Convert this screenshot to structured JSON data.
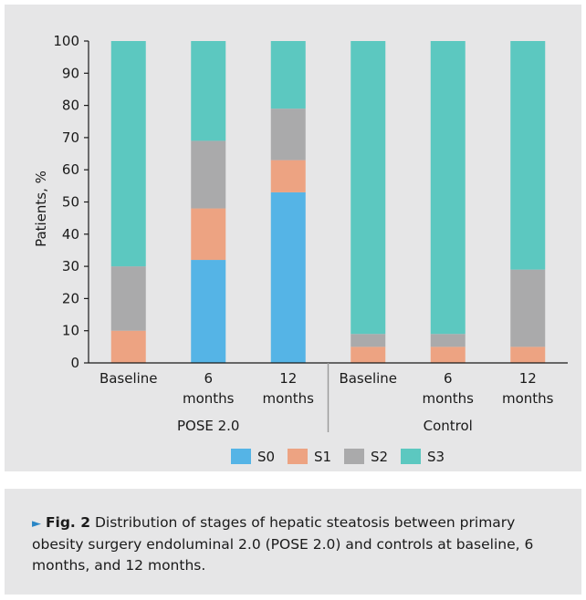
{
  "chart_data": {
    "type": "bar",
    "stacked": true,
    "categories": [
      "Baseline",
      "6 months",
      "12 months",
      "Baseline",
      "6 months",
      "12 months"
    ],
    "category_lines": [
      [
        "Baseline"
      ],
      [
        "6",
        "months"
      ],
      [
        "12",
        "months"
      ],
      [
        "Baseline"
      ],
      [
        "6",
        "months"
      ],
      [
        "12",
        "months"
      ]
    ],
    "groups": [
      {
        "label": "POSE 2.0",
        "categories": [
          0,
          1,
          2
        ]
      },
      {
        "label": "Control",
        "categories": [
          3,
          4,
          5
        ]
      }
    ],
    "series": [
      {
        "name": "S0",
        "color": "#55b4e6",
        "values": [
          0,
          32,
          53,
          0,
          0,
          0
        ]
      },
      {
        "name": "S1",
        "color": "#eda382",
        "values": [
          10,
          16,
          10,
          5,
          5,
          5
        ]
      },
      {
        "name": "S2",
        "color": "#aaaaab",
        "values": [
          20,
          21,
          16,
          4,
          4,
          24
        ]
      },
      {
        "name": "S3",
        "color": "#5cc8c0",
        "values": [
          70,
          31,
          21,
          91,
          91,
          71
        ]
      }
    ],
    "ylabel": "Patients, %",
    "ylim": [
      0,
      100
    ],
    "yticks": [
      0,
      10,
      20,
      30,
      40,
      50,
      60,
      70,
      80,
      90,
      100
    ],
    "grid": false,
    "legend_position": "bottom"
  },
  "caption": {
    "arrow": "►",
    "label": "Fig. 2",
    "text": "Distribution of stages of hepatic steatosis between primary obesity surgery endoluminal 2.0 (POSE 2.0) and controls at baseline, 6 months, and 12 months."
  }
}
